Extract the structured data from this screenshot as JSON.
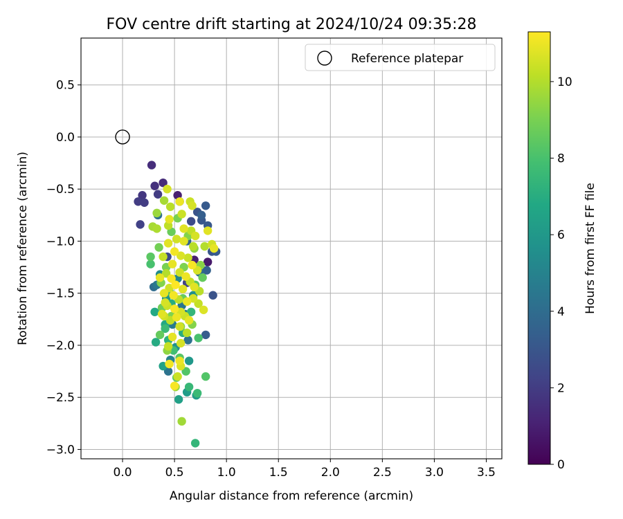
{
  "chart_data": {
    "type": "scatter",
    "title": "FOV centre drift starting at 2024/10/24 09:35:28",
    "xlabel": "Angular distance from reference (arcmin)",
    "ylabel": "Rotation from reference (arcmin)",
    "xlim": [
      -0.4,
      3.65
    ],
    "ylim": [
      -3.09,
      0.95
    ],
    "xticks": [
      0.0,
      0.5,
      1.0,
      1.5,
      2.0,
      2.5,
      3.0,
      3.5
    ],
    "xtick_labels": [
      "0.0",
      "0.5",
      "1.0",
      "1.5",
      "2.0",
      "2.5",
      "3.0",
      "3.5"
    ],
    "yticks": [
      0.5,
      0.0,
      -0.5,
      -1.0,
      -1.5,
      -2.0,
      -2.5,
      -3.0
    ],
    "ytick_labels": [
      "0.5",
      "0.0",
      "−0.5",
      "−1.0",
      "−1.5",
      "−2.0",
      "−2.5",
      "−3.0"
    ],
    "grid": true,
    "legend": {
      "position": "top-right",
      "entries": [
        {
          "label": "Reference platepar",
          "marker": "hollow-circle"
        }
      ]
    },
    "reference_point": {
      "x": 0.0,
      "y": 0.0
    },
    "colorbar": {
      "label": "Hours from first FF file",
      "range": [
        0,
        11.3
      ],
      "ticks": [
        0,
        2,
        4,
        6,
        8,
        10
      ],
      "tick_labels": [
        "0",
        "2",
        "4",
        "6",
        "8",
        "10"
      ],
      "colormap": "viridis"
    },
    "series": [
      {
        "points": [
          [
            0.28,
            -0.27,
            1.5
          ],
          [
            0.15,
            -0.62,
            2.0
          ],
          [
            0.19,
            -0.56,
            1.8
          ],
          [
            0.21,
            -0.63,
            2.0
          ],
          [
            0.31,
            -0.47,
            1.6
          ],
          [
            0.39,
            -0.44,
            1.4
          ],
          [
            0.34,
            -0.55,
            2.0
          ],
          [
            0.17,
            -0.84,
            2.2
          ],
          [
            0.53,
            -0.56,
            1.0
          ],
          [
            0.8,
            -0.66,
            3.2
          ],
          [
            0.72,
            -0.72,
            2.9
          ],
          [
            0.82,
            -0.85,
            3.1
          ],
          [
            0.76,
            -0.8,
            3.0
          ],
          [
            0.86,
            -1.1,
            3.0
          ],
          [
            0.9,
            -1.1,
            3.2
          ],
          [
            0.82,
            -1.2,
            0.8
          ],
          [
            0.81,
            -1.28,
            3.5
          ],
          [
            0.87,
            -1.52,
            2.9
          ],
          [
            0.8,
            -1.9,
            3.3
          ],
          [
            0.76,
            -0.75,
            3.4
          ],
          [
            0.66,
            -0.81,
            2.6
          ],
          [
            0.55,
            -0.62,
            2.4
          ],
          [
            0.69,
            -1.18,
            1.0
          ],
          [
            0.62,
            -1.4,
            2.2
          ],
          [
            0.43,
            -1.15,
            2.6
          ],
          [
            0.3,
            -1.44,
            4.0
          ],
          [
            0.33,
            -1.42,
            4.5
          ],
          [
            0.44,
            -2.25,
            4.3
          ],
          [
            0.46,
            -2.14,
            5.0
          ],
          [
            0.34,
            -0.75,
            4.2
          ],
          [
            0.62,
            -1.0,
            3.6
          ],
          [
            0.57,
            -1.62,
            4.4
          ],
          [
            0.48,
            -1.8,
            4.6
          ],
          [
            0.74,
            -1.3,
            4.0
          ],
          [
            0.63,
            -1.95,
            4.2
          ],
          [
            0.36,
            -1.32,
            5.4
          ],
          [
            0.53,
            -1.36,
            5.1
          ],
          [
            0.68,
            -1.52,
            5.6
          ],
          [
            0.6,
            -1.7,
            4.8
          ],
          [
            0.42,
            -1.55,
            5.8
          ],
          [
            0.51,
            -2.02,
            5.6
          ],
          [
            0.64,
            -2.15,
            6.0
          ],
          [
            0.54,
            -2.52,
            6.4
          ],
          [
            0.62,
            -2.45,
            6.2
          ],
          [
            0.71,
            -2.48,
            6.2
          ],
          [
            0.7,
            -2.94,
            7.4
          ],
          [
            0.31,
            -1.68,
            6.8
          ],
          [
            0.32,
            -1.97,
            6.9
          ],
          [
            0.39,
            -2.2,
            6.5
          ],
          [
            0.41,
            -1.8,
            6.8
          ],
          [
            0.47,
            -1.6,
            7.0
          ],
          [
            0.58,
            -1.88,
            7.0
          ],
          [
            0.64,
            -2.4,
            7.5
          ],
          [
            0.72,
            -2.46,
            7.6
          ],
          [
            0.8,
            -2.3,
            8.2
          ],
          [
            0.73,
            -1.93,
            8.0
          ],
          [
            0.45,
            -1.48,
            7.4
          ],
          [
            0.44,
            -1.95,
            7.2
          ],
          [
            0.66,
            -1.68,
            7.4
          ],
          [
            0.41,
            -1.84,
            7.6
          ],
          [
            0.49,
            -2.05,
            7.8
          ],
          [
            0.55,
            -2.12,
            8.3
          ],
          [
            0.61,
            -2.25,
            8.2
          ],
          [
            0.52,
            -2.31,
            8.5
          ],
          [
            0.36,
            -1.9,
            8.6
          ],
          [
            0.38,
            -1.64,
            8.8
          ],
          [
            0.58,
            -1.55,
            8.6
          ],
          [
            0.7,
            -1.42,
            8.4
          ],
          [
            0.77,
            -1.35,
            8.6
          ],
          [
            0.27,
            -1.15,
            8.4
          ],
          [
            0.27,
            -1.22,
            8.0
          ],
          [
            0.35,
            -1.06,
            8.9
          ],
          [
            0.47,
            -0.91,
            8.7
          ],
          [
            0.53,
            -0.78,
            9.0
          ],
          [
            0.63,
            -0.95,
            9.2
          ],
          [
            0.69,
            -1.07,
            9.4
          ],
          [
            0.75,
            -1.23,
            9.3
          ],
          [
            0.59,
            -1.25,
            9.1
          ],
          [
            0.42,
            -1.25,
            9.0
          ],
          [
            0.37,
            -1.4,
            9.2
          ],
          [
            0.47,
            -1.72,
            9.1
          ],
          [
            0.56,
            -1.82,
            9.3
          ],
          [
            0.67,
            -1.8,
            9.2
          ],
          [
            0.43,
            -2.05,
            9.4
          ],
          [
            0.51,
            -2.4,
            9.6
          ],
          [
            0.57,
            -2.73,
            9.7
          ],
          [
            0.29,
            -0.86,
            9.8
          ],
          [
            0.33,
            -0.88,
            9.9
          ],
          [
            0.33,
            -0.73,
            9.6
          ],
          [
            0.4,
            -0.61,
            9.8
          ],
          [
            0.43,
            -0.5,
            10.6
          ],
          [
            0.46,
            -0.67,
            10.1
          ],
          [
            0.55,
            -0.62,
            11.0
          ],
          [
            0.65,
            -0.62,
            10.4
          ],
          [
            0.67,
            -0.66,
            10.6
          ],
          [
            0.57,
            -0.74,
            10.4
          ],
          [
            0.45,
            -0.79,
            10.9
          ],
          [
            0.44,
            -0.85,
            10.2
          ],
          [
            0.59,
            -0.88,
            10.8
          ],
          [
            0.66,
            -0.9,
            10.2
          ],
          [
            0.7,
            -0.95,
            10.6
          ],
          [
            0.82,
            -0.9,
            10.8
          ],
          [
            0.86,
            -1.03,
            10.5
          ],
          [
            0.88,
            -1.07,
            10.9
          ],
          [
            0.79,
            -1.05,
            10.0
          ],
          [
            0.52,
            -0.98,
            10.5
          ],
          [
            0.44,
            -1.02,
            10.8
          ],
          [
            0.39,
            -1.15,
            10.3
          ],
          [
            0.5,
            -1.1,
            11.1
          ],
          [
            0.56,
            -1.14,
            10.7
          ],
          [
            0.63,
            -1.16,
            10.4
          ],
          [
            0.67,
            -1.23,
            11.2
          ],
          [
            0.72,
            -1.28,
            10.6
          ],
          [
            0.48,
            -1.22,
            10.9
          ],
          [
            0.42,
            -1.31,
            10.0
          ],
          [
            0.47,
            -1.36,
            11.2
          ],
          [
            0.55,
            -1.3,
            10.5
          ],
          [
            0.61,
            -1.34,
            11.0
          ],
          [
            0.65,
            -1.39,
            10.3
          ],
          [
            0.69,
            -1.44,
            10.8
          ],
          [
            0.74,
            -1.48,
            10.1
          ],
          [
            0.51,
            -1.42,
            11.3
          ],
          [
            0.58,
            -1.46,
            10.8
          ],
          [
            0.45,
            -1.45,
            10.5
          ],
          [
            0.4,
            -1.5,
            10.9
          ],
          [
            0.49,
            -1.52,
            11.1
          ],
          [
            0.54,
            -1.56,
            10.2
          ],
          [
            0.62,
            -1.58,
            11.0
          ],
          [
            0.68,
            -1.55,
            10.6
          ],
          [
            0.73,
            -1.6,
            10.3
          ],
          [
            0.78,
            -1.66,
            10.7
          ],
          [
            0.43,
            -1.62,
            10.4
          ],
          [
            0.5,
            -1.65,
            11.2
          ],
          [
            0.56,
            -1.68,
            10.6
          ],
          [
            0.52,
            -1.73,
            11.0
          ],
          [
            0.6,
            -1.72,
            10.4
          ],
          [
            0.64,
            -1.76,
            10.9
          ],
          [
            0.46,
            -1.76,
            10.2
          ],
          [
            0.38,
            -1.7,
            10.8
          ],
          [
            0.55,
            -1.82,
            10.5
          ],
          [
            0.62,
            -1.88,
            10.1
          ],
          [
            0.48,
            -1.92,
            10.9
          ],
          [
            0.56,
            -1.98,
            10.6
          ],
          [
            0.44,
            -2.01,
            10.3
          ],
          [
            0.55,
            -2.15,
            11.0
          ],
          [
            0.56,
            -2.2,
            10.7
          ],
          [
            0.45,
            -2.18,
            11.1
          ],
          [
            0.53,
            -2.3,
            10.4
          ],
          [
            0.5,
            -2.39,
            11.2
          ],
          [
            0.41,
            -1.59,
            10.6
          ],
          [
            0.36,
            -1.35,
            10.9
          ],
          [
            0.4,
            -1.72,
            10.5
          ],
          [
            0.59,
            -1.0,
            10.8
          ],
          [
            0.68,
            -1.05,
            10.1
          ]
        ]
      }
    ]
  }
}
